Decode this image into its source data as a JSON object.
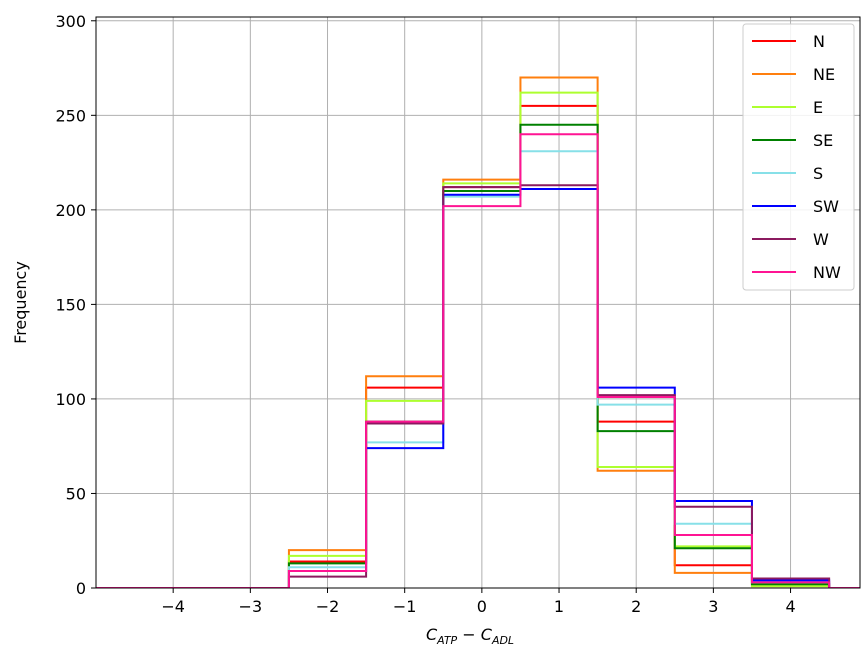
{
  "chart_data": {
    "type": "step-histogram",
    "ylabel": "Frequency",
    "xlabel_main": "C",
    "xlabel_sub1": "ATP",
    "xlabel_minus": " − ",
    "xlabel_sub2": "ADL",
    "xlim": [
      -5,
      4.9
    ],
    "ylim": [
      0,
      302
    ],
    "x_ticks": [
      -4,
      -3,
      -2,
      -1,
      0,
      1,
      2,
      3,
      4
    ],
    "x_tick_labels": [
      "−4",
      "−3",
      "−2",
      "−1",
      "0",
      "1",
      "2",
      "3",
      "4"
    ],
    "y_ticks": [
      0,
      50,
      100,
      150,
      200,
      250,
      300
    ],
    "y_tick_labels": [
      "0",
      "50",
      "100",
      "150",
      "200",
      "250",
      "300"
    ],
    "grid": true,
    "legend_position": "top-right",
    "bin_edges": [
      -5.5,
      -4.5,
      -3.5,
      -2.5,
      -1.5,
      -0.5,
      0.5,
      1.5,
      2.5,
      3.5,
      4.5,
      5.5
    ],
    "series": [
      {
        "name": "N",
        "color": "#ff0000",
        "values": [
          0,
          0,
          0,
          14,
          106,
          212,
          255,
          88,
          12,
          2,
          0
        ]
      },
      {
        "name": "NE",
        "color": "#ff7f0e",
        "values": [
          0,
          0,
          0,
          20,
          112,
          216,
          270,
          62,
          8,
          1,
          0
        ]
      },
      {
        "name": "E",
        "color": "#adff2f",
        "values": [
          0,
          0,
          0,
          17,
          99,
          214,
          262,
          64,
          22,
          1,
          0
        ]
      },
      {
        "name": "SE",
        "color": "#008000",
        "values": [
          0,
          0,
          0,
          13,
          88,
          210,
          245,
          83,
          21,
          2,
          0
        ]
      },
      {
        "name": "S",
        "color": "#87e0e8",
        "values": [
          0,
          0,
          0,
          11,
          77,
          207,
          231,
          97,
          34,
          3,
          0
        ]
      },
      {
        "name": "SW",
        "color": "#0000ff",
        "values": [
          0,
          0,
          0,
          9,
          74,
          208,
          211,
          106,
          46,
          4,
          0
        ]
      },
      {
        "name": "W",
        "color": "#8b1a5f",
        "values": [
          0,
          0,
          0,
          6,
          87,
          212,
          213,
          102,
          43,
          5,
          0
        ]
      },
      {
        "name": "NW",
        "color": "#ff1493",
        "values": [
          0,
          0,
          0,
          9,
          88,
          202,
          240,
          101,
          28,
          3,
          0
        ]
      }
    ]
  }
}
